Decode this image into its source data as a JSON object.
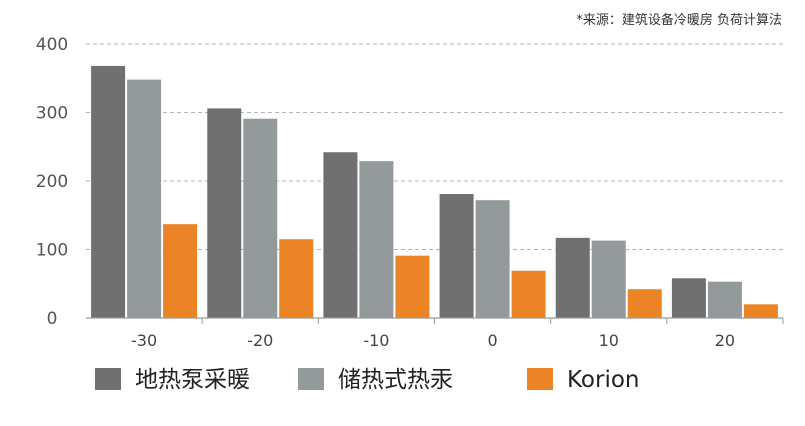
{
  "chart_data": {
    "type": "bar",
    "source_note": "*来源：建筑设备冷暖房 负荷计算法",
    "categories": [
      "-30",
      "-20",
      "-10",
      "0",
      "10",
      "20"
    ],
    "series": [
      {
        "name": "地热泵采暖",
        "color": "#707070",
        "values": [
          368,
          306,
          242,
          181,
          117,
          58
        ]
      },
      {
        "name": "储热式热汞",
        "color": "#949a9c",
        "values": [
          348,
          291,
          229,
          172,
          113,
          53
        ]
      },
      {
        "name": "Korion",
        "color": "#eb8427",
        "values": [
          137,
          115,
          91,
          69,
          42,
          20
        ]
      }
    ],
    "ylim": [
      0,
      400
    ],
    "yticks": [
      0,
      100,
      200,
      300,
      400
    ],
    "grid": true,
    "legend_position": "bottom"
  }
}
